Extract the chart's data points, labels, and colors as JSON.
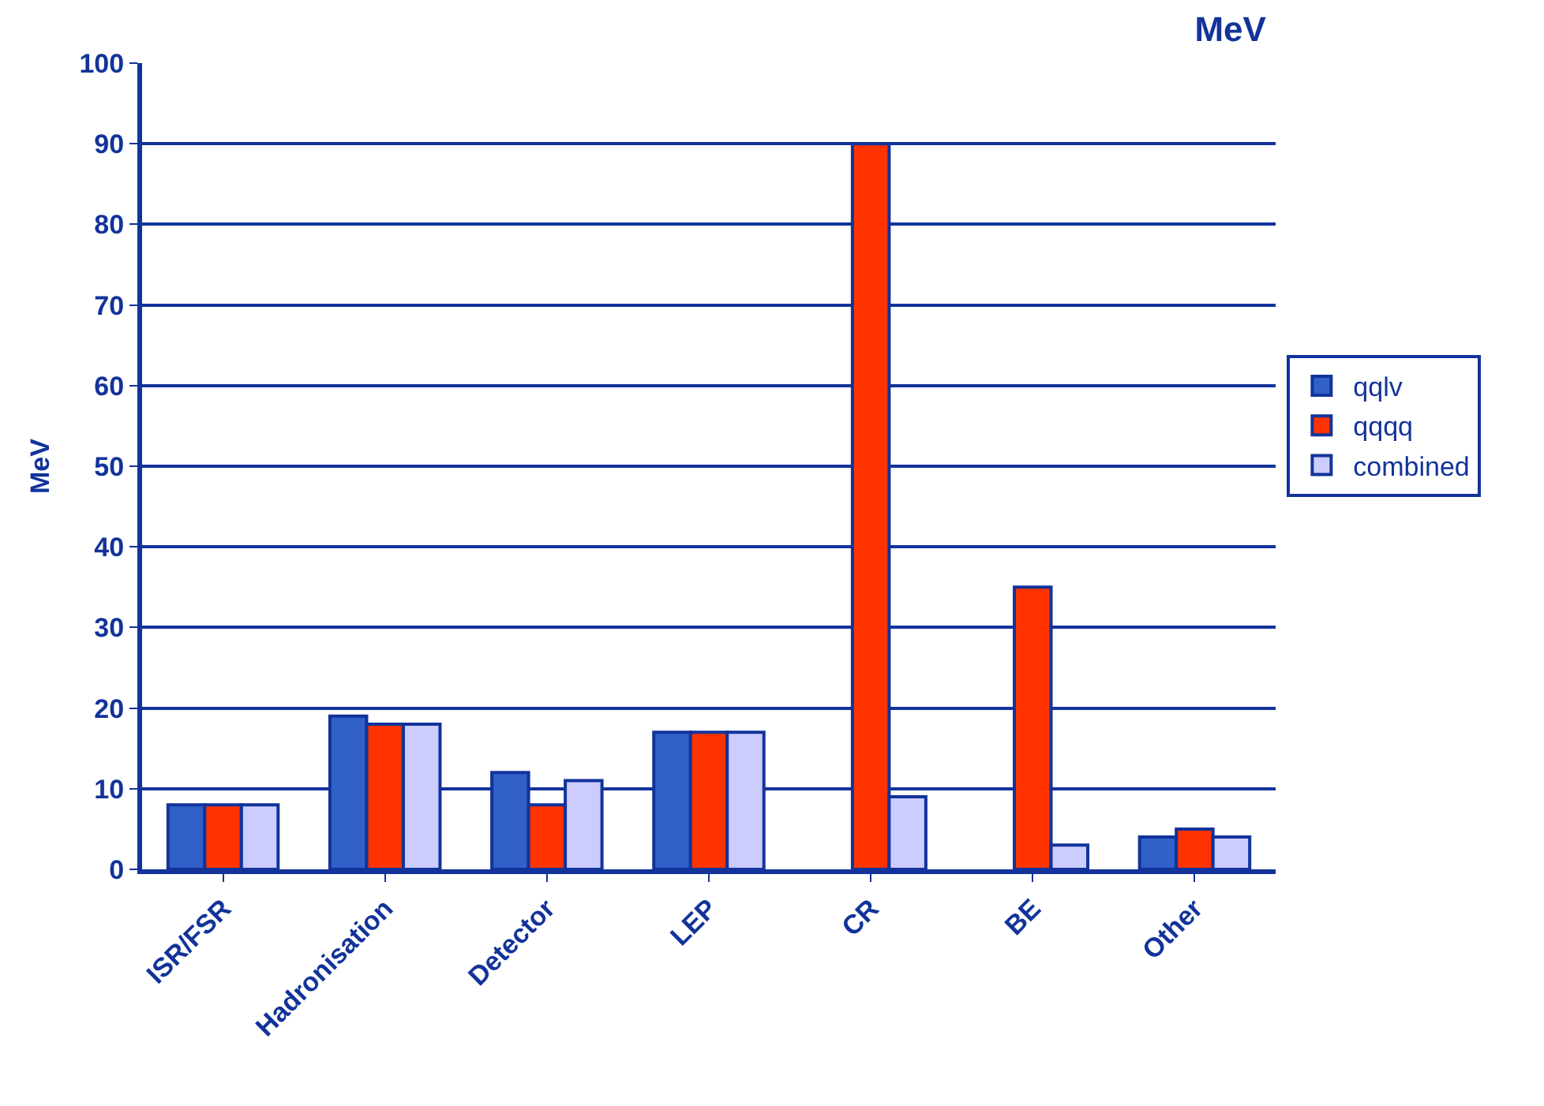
{
  "chart_data": {
    "type": "bar",
    "title": "MeV",
    "ylabel": "MeV",
    "categories": [
      "ISR/FSR",
      "Hadronisation",
      "Detector",
      "LEP",
      "CR",
      "BE",
      "Other"
    ],
    "series": [
      {
        "name": "qqlv",
        "color": "#3060c8",
        "values": [
          8,
          19,
          12,
          17,
          null,
          null,
          4
        ]
      },
      {
        "name": "qqqq",
        "color": "#ff3300",
        "values": [
          8,
          18,
          8,
          17,
          90,
          35,
          5
        ]
      },
      {
        "name": "combined",
        "color": "#ccccff",
        "values": [
          8,
          18,
          11,
          17,
          9,
          3,
          4
        ]
      }
    ],
    "ylim": [
      0,
      100
    ],
    "yticks": [
      0,
      10,
      20,
      30,
      40,
      50,
      60,
      70,
      80,
      90,
      100
    ],
    "grid": "y",
    "legend": "right"
  }
}
